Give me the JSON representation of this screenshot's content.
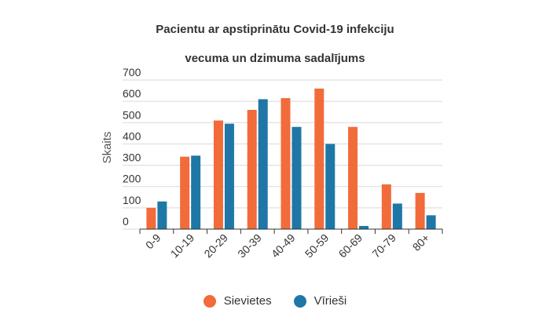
{
  "chart_data": {
    "type": "bar",
    "title_line1": "Pacientu ar apstiprinātu Covid-19 infekciju",
    "title_line2": "vecuma un dzimuma sadalījums",
    "ylabel": "Skaits",
    "xlabel": "",
    "ylim": [
      0,
      700
    ],
    "yticks": [
      0,
      100,
      200,
      300,
      400,
      500,
      600,
      700
    ],
    "grid": true,
    "legend_position": "bottom",
    "categories": [
      "0-9",
      "10-19",
      "20-29",
      "30-39",
      "40-49",
      "50-59",
      "60-69",
      "70-79",
      "80+"
    ],
    "series": [
      {
        "name": "Sievietes",
        "color": "#f26b3a",
        "values": [
          100,
          340,
          510,
          560,
          615,
          660,
          480,
          210,
          170
        ]
      },
      {
        "name": "Vīrieši",
        "color": "#1f77a7",
        "values": [
          130,
          345,
          495,
          610,
          480,
          400,
          15,
          120,
          65
        ]
      }
    ]
  }
}
